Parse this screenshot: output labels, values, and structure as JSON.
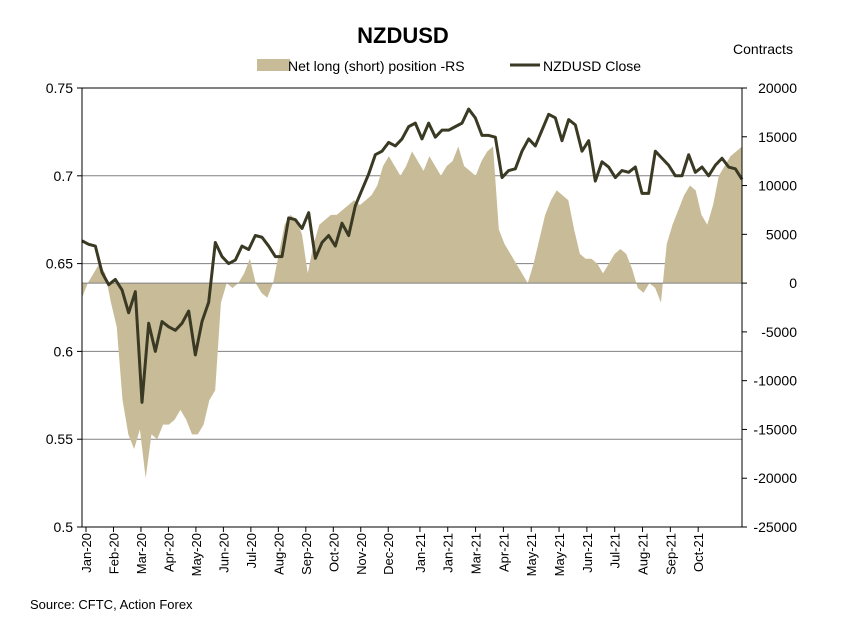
{
  "chart_data": {
    "type": "area+line",
    "title": "NZDUSD",
    "y2_axis_title": "Contracts",
    "source": "Source: CFTC, Action Forex",
    "legend": [
      {
        "label": "Net long (short) position -RS",
        "type": "area",
        "color": "#c8bc98"
      },
      {
        "label": "NZDUSD Close",
        "type": "line",
        "color": "#3a3a24"
      }
    ],
    "legend_placement": "top",
    "grid": "horizontal",
    "y_left": {
      "range": [
        0.5,
        0.75
      ],
      "ticks": [
        "0.75",
        "0.7",
        "0.65",
        "0.6",
        "0.55",
        "0.5"
      ],
      "tick_values": [
        0.75,
        0.7,
        0.65,
        0.6,
        0.55,
        0.5
      ]
    },
    "y_right": {
      "range": [
        -25000,
        20000
      ],
      "ticks": [
        "20000",
        "15000",
        "10000",
        "5000",
        "0",
        "-5000",
        "-10000",
        "-15000",
        "-20000",
        "-25000"
      ],
      "tick_values": [
        20000,
        15000,
        10000,
        5000,
        0,
        -5000,
        -10000,
        -15000,
        -20000,
        -25000
      ]
    },
    "x_labels": [
      "Jan-20",
      "Feb-20",
      "Mar-20",
      "Apr-20",
      "May-20",
      "Jun-20",
      "Jul-20",
      "Aug-20",
      "Sep-20",
      "Oct-20",
      "Nov-20",
      "Dec-20",
      "Jan-21",
      "Jan-21",
      "Mar-21",
      "Apr-21",
      "May-21",
      "May-21",
      "Jun-21",
      "Jul-21",
      "Aug-21",
      "Sep-21",
      "Oct-21"
    ],
    "series": [
      {
        "name": "Net long (short) position -RS",
        "axis": "right",
        "values": [
          -1500,
          0,
          1000,
          2000,
          1000,
          -2000,
          -4500,
          -12000,
          -15500,
          -17000,
          -15000,
          -20000,
          -15500,
          -16000,
          -14500,
          -14500,
          -14000,
          -13000,
          -14000,
          -15500,
          -15500,
          -14500,
          -12000,
          -11000,
          -2000,
          0,
          -500,
          0,
          1000,
          2500,
          0,
          -1000,
          -1500,
          0,
          3000,
          6000,
          7000,
          6500,
          5000,
          1000,
          4000,
          6000,
          6500,
          7000,
          7000,
          7500,
          8000,
          8500,
          8000,
          8500,
          9000,
          10000,
          12000,
          13000,
          12000,
          11000,
          12000,
          13500,
          12500,
          11500,
          13000,
          12000,
          11000,
          12000,
          12500,
          14000,
          12000,
          11500,
          11000,
          12500,
          13500,
          14000,
          5500,
          4000,
          3000,
          2000,
          1000,
          0,
          2000,
          4500,
          7000,
          8500,
          9500,
          9000,
          8500,
          5500,
          3000,
          2500,
          2500,
          2000,
          1000,
          2000,
          3000,
          3500,
          3000,
          1500,
          -500,
          -1000,
          0,
          -500,
          -2000,
          4000,
          6000,
          7500,
          9000,
          10000,
          9500,
          7000,
          6000,
          8000,
          11000,
          12000,
          13000,
          13500,
          14000
        ]
      },
      {
        "name": "NZDUSD Close",
        "axis": "left",
        "values": [
          0.663,
          0.661,
          0.66,
          0.645,
          0.638,
          0.641,
          0.635,
          0.622,
          0.634,
          0.571,
          0.616,
          0.6,
          0.617,
          0.614,
          0.612,
          0.616,
          0.623,
          0.598,
          0.617,
          0.628,
          0.662,
          0.654,
          0.65,
          0.652,
          0.66,
          0.658,
          0.666,
          0.665,
          0.66,
          0.654,
          0.654,
          0.676,
          0.675,
          0.67,
          0.679,
          0.653,
          0.662,
          0.666,
          0.66,
          0.673,
          0.666,
          0.683,
          0.692,
          0.701,
          0.712,
          0.714,
          0.719,
          0.717,
          0.721,
          0.728,
          0.73,
          0.721,
          0.73,
          0.722,
          0.726,
          0.726,
          0.728,
          0.73,
          0.738,
          0.733,
          0.723,
          0.723,
          0.722,
          0.699,
          0.703,
          0.704,
          0.714,
          0.721,
          0.717,
          0.726,
          0.735,
          0.733,
          0.72,
          0.732,
          0.729,
          0.714,
          0.72,
          0.697,
          0.708,
          0.705,
          0.699,
          0.703,
          0.702,
          0.705,
          0.69,
          0.69,
          0.714,
          0.71,
          0.706,
          0.7,
          0.7,
          0.712,
          0.702,
          0.705,
          0.7,
          0.706,
          0.71,
          0.705,
          0.704,
          0.698
        ]
      }
    ]
  }
}
